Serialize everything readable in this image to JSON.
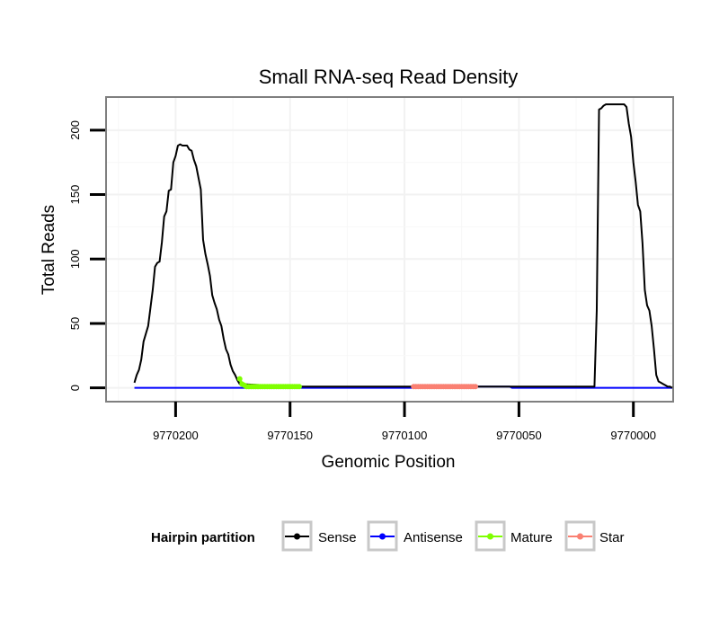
{
  "chart_data": {
    "type": "line",
    "title": "Small RNA-seq Read Density",
    "xlabel": "Genomic Position",
    "ylabel": "Total Reads",
    "x_reversed": true,
    "xlim": [
      9770230,
      9769983
    ],
    "ylim": [
      -10,
      225
    ],
    "x_ticks": [
      9770200,
      9770150,
      9770100,
      9770050,
      9770000
    ],
    "x_tick_labels": [
      "9770200",
      "9770150",
      "9770100",
      "9770050",
      "9770000"
    ],
    "y_ticks": [
      0,
      50,
      100,
      150,
      200
    ],
    "y_tick_labels": [
      "0",
      "50",
      "100",
      "150",
      "200"
    ],
    "grid": true,
    "legend_title": "Hairpin partition",
    "legend_position": "bottom",
    "series": [
      {
        "name": "Sense",
        "color": "#000000",
        "style": "line",
        "x": [
          9770218,
          9770217,
          9770216,
          9770215,
          9770214,
          9770213,
          9770212,
          9770211,
          9770210,
          9770209,
          9770208,
          9770207,
          9770206,
          9770205,
          9770204,
          9770203,
          9770202,
          9770201,
          9770200,
          9770199,
          9770198,
          9770197,
          9770196,
          9770195,
          9770194,
          9770193,
          9770192,
          9770191,
          9770190,
          9770189,
          9770188,
          9770187,
          9770186,
          9770185,
          9770184,
          9770183,
          9770182,
          9770181,
          9770180,
          9770179,
          9770178,
          9770177,
          9770176,
          9770175,
          9770174,
          9770173,
          9770172,
          9770150,
          9770100,
          9770060,
          9770017,
          9770016,
          9770015,
          9770014,
          9770013,
          9770012,
          9770011,
          9770010,
          9770009,
          9770008,
          9770007,
          9770006,
          9770005,
          9770004,
          9770003,
          9770002,
          9770001,
          9770000,
          9769999,
          9769998,
          9769997,
          9769996,
          9769995,
          9769994,
          9769993,
          9769992,
          9769991,
          9769990,
          9769989,
          9769988,
          9769987,
          9769986,
          9769985,
          9769984,
          9769983
        ],
        "y": [
          4,
          10,
          14,
          22,
          36,
          42,
          48,
          62,
          76,
          94,
          97,
          98,
          113,
          133,
          137,
          153,
          154,
          175,
          180,
          188,
          189,
          188,
          188,
          188,
          185,
          184,
          177,
          172,
          163,
          154,
          115,
          104,
          96,
          87,
          72,
          66,
          61,
          53,
          48,
          38,
          30,
          26,
          18,
          13,
          10,
          6,
          3,
          1,
          1,
          1,
          1,
          60,
          216,
          217,
          219,
          220,
          220,
          220,
          220,
          220,
          220,
          220,
          220,
          220,
          218,
          205,
          195,
          175,
          160,
          142,
          137,
          112,
          76,
          64,
          60,
          48,
          30,
          10,
          5,
          4,
          3,
          2,
          1,
          1,
          0
        ]
      },
      {
        "name": "Antisense",
        "color": "#0000ff",
        "style": "line",
        "x": [
          9770218,
          9770100,
          9770073,
          9770072,
          9770054,
          9770053,
          9770030,
          9769983
        ],
        "y": [
          0,
          0,
          0,
          1,
          1,
          0,
          0,
          0
        ]
      },
      {
        "name": "Mature",
        "color": "#7fff00",
        "style": "line-points",
        "x": [
          9770172,
          9770171,
          9770170,
          9770169,
          9770168,
          9770167,
          9770166,
          9770165,
          9770164,
          9770163,
          9770162,
          9770161,
          9770160,
          9770159,
          9770158,
          9770157,
          9770156,
          9770155,
          9770154,
          9770153,
          9770152,
          9770151,
          9770150,
          9770149,
          9770148,
          9770147,
          9770146
        ],
        "y": [
          7,
          3,
          2,
          1,
          1,
          1,
          1,
          1,
          1,
          1,
          1,
          1,
          1,
          1,
          1,
          1,
          1,
          1,
          1,
          1,
          1,
          1,
          1,
          1,
          1,
          1,
          1
        ]
      },
      {
        "name": "Star",
        "color": "#fa8072",
        "style": "line-points",
        "x": [
          9770096,
          9770095,
          9770094,
          9770093,
          9770092,
          9770091,
          9770090,
          9770089,
          9770088,
          9770087,
          9770086,
          9770085,
          9770084,
          9770083,
          9770082,
          9770081,
          9770080,
          9770079,
          9770078,
          9770077,
          9770076,
          9770075,
          9770074,
          9770073,
          9770072,
          9770071,
          9770070,
          9770069
        ],
        "y": [
          1,
          1,
          1,
          1,
          1,
          1,
          1,
          1,
          1,
          1,
          1,
          1,
          1,
          1,
          1,
          1,
          1,
          1,
          1,
          1,
          1,
          1,
          1,
          1,
          1,
          1,
          1,
          1
        ]
      }
    ]
  }
}
